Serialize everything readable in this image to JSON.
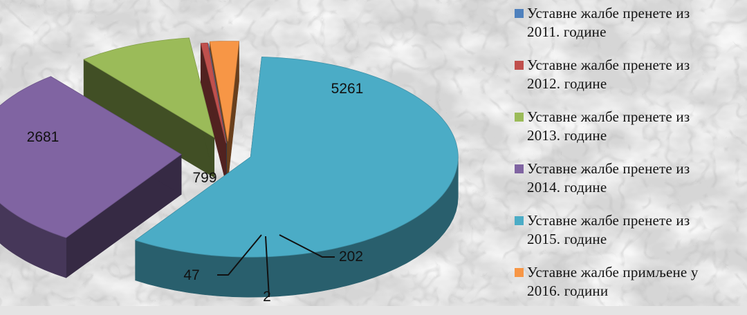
{
  "chart_data": {
    "type": "pie",
    "title": "",
    "slices": [
      {
        "name": "Уставне жалбе пренете из 2011. године",
        "value": 2,
        "color": "#4f81bd"
      },
      {
        "name": "Уставне жалбе пренете из 2012. године",
        "value": 47,
        "color": "#c0504d"
      },
      {
        "name": "Уставне жалбе пренете из 2013. године",
        "value": 799,
        "color": "#9bbb59"
      },
      {
        "name": "Уставне жалбе пренете из 2014. године",
        "value": 2681,
        "color": "#8064a2"
      },
      {
        "name": "Уставне жалбе пренете из 2015. године",
        "value": 5261,
        "color": "#4bacc6"
      },
      {
        "name": "Уставне жалбе примљене у 2016. години",
        "value": 202,
        "color": "#f79646"
      }
    ],
    "data_labels": [
      "2",
      "47",
      "799",
      "2681",
      "5261",
      "202"
    ],
    "legend": {
      "position": "right",
      "items": [
        {
          "line1": "Уставне жалбе пренете из",
          "line2": "2011. године",
          "color": "#4f81bd"
        },
        {
          "line1": "Уставне жалбе пренете из",
          "line2": "2012. године",
          "color": "#c0504d"
        },
        {
          "line1": "Уставне жалбе пренете из",
          "line2": "2013. године",
          "color": "#9bbb59"
        },
        {
          "line1": "Уставне жалбе пренете из",
          "line2": "2014. године",
          "color": "#8064a2"
        },
        {
          "line1": "Уставне жалбе пренете из",
          "line2": "2015. године",
          "color": "#4bacc6"
        },
        {
          "line1": "Уставне жалбе примљене у",
          "line2": "2016. години",
          "color": "#f79646"
        }
      ]
    },
    "style": "3d-exploded-pie"
  }
}
